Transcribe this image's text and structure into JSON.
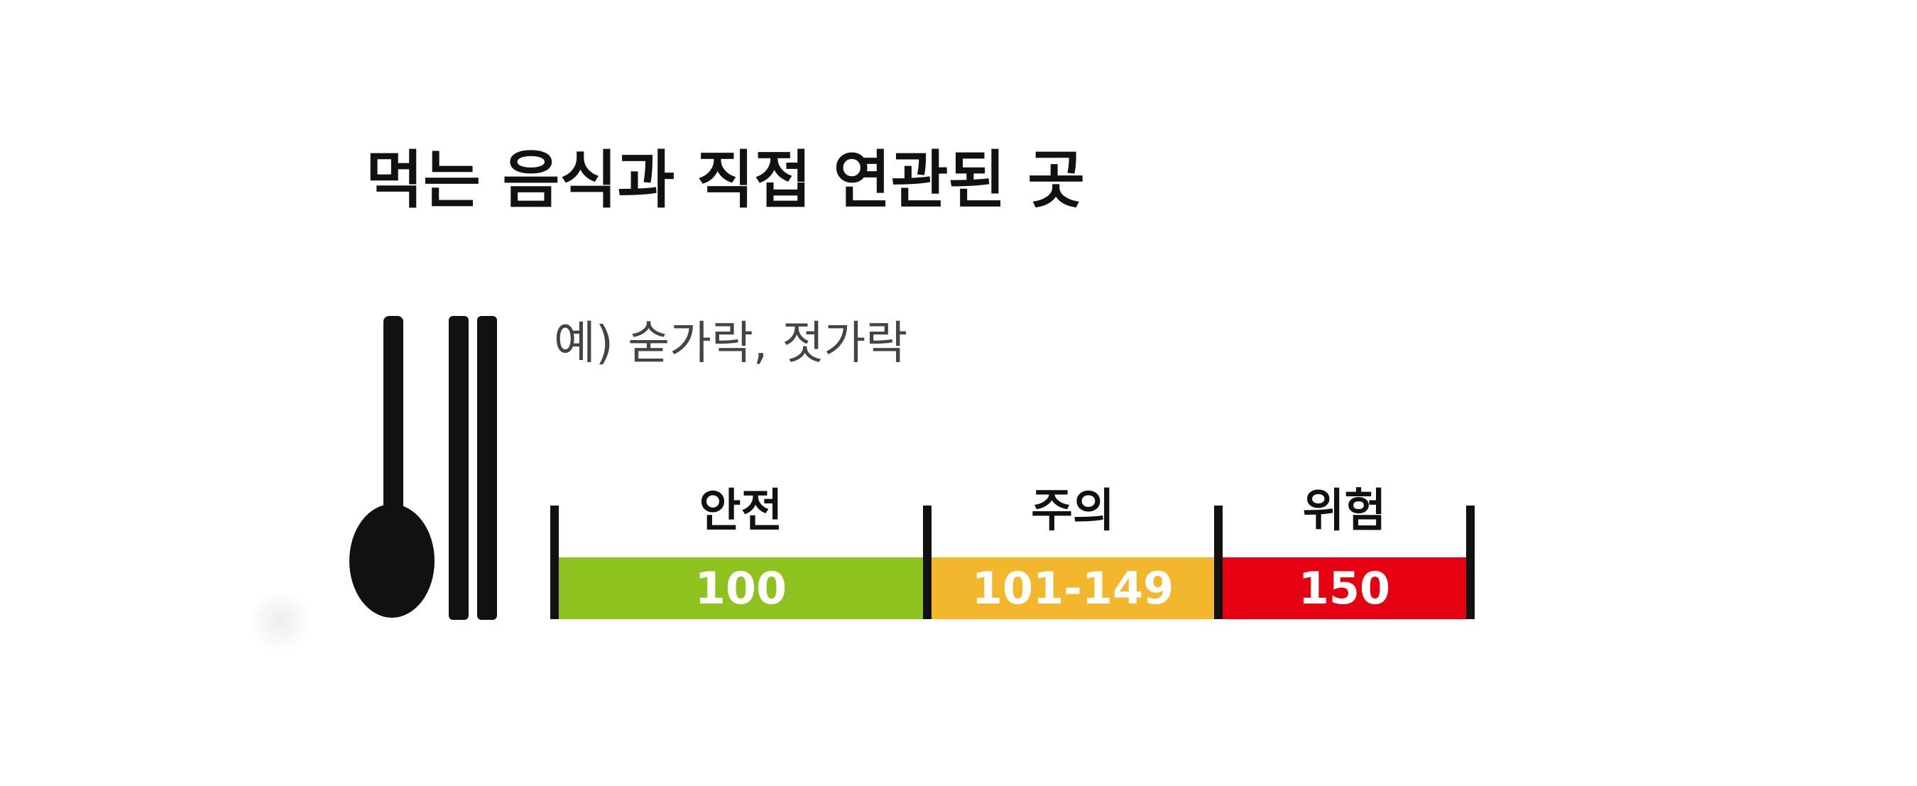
{
  "title": "먹는 음식과 직접 연관된 곳",
  "example": "예) 숟가락, 젓가락",
  "icon": "spoon-chopsticks-icon",
  "scale": {
    "segments": [
      {
        "label": "안전",
        "value": "100",
        "color": "#8dc21f"
      },
      {
        "label": "주의",
        "value": "101-149",
        "color": "#f3b72e"
      },
      {
        "label": "위험",
        "value": "150",
        "color": "#e50012"
      }
    ]
  }
}
